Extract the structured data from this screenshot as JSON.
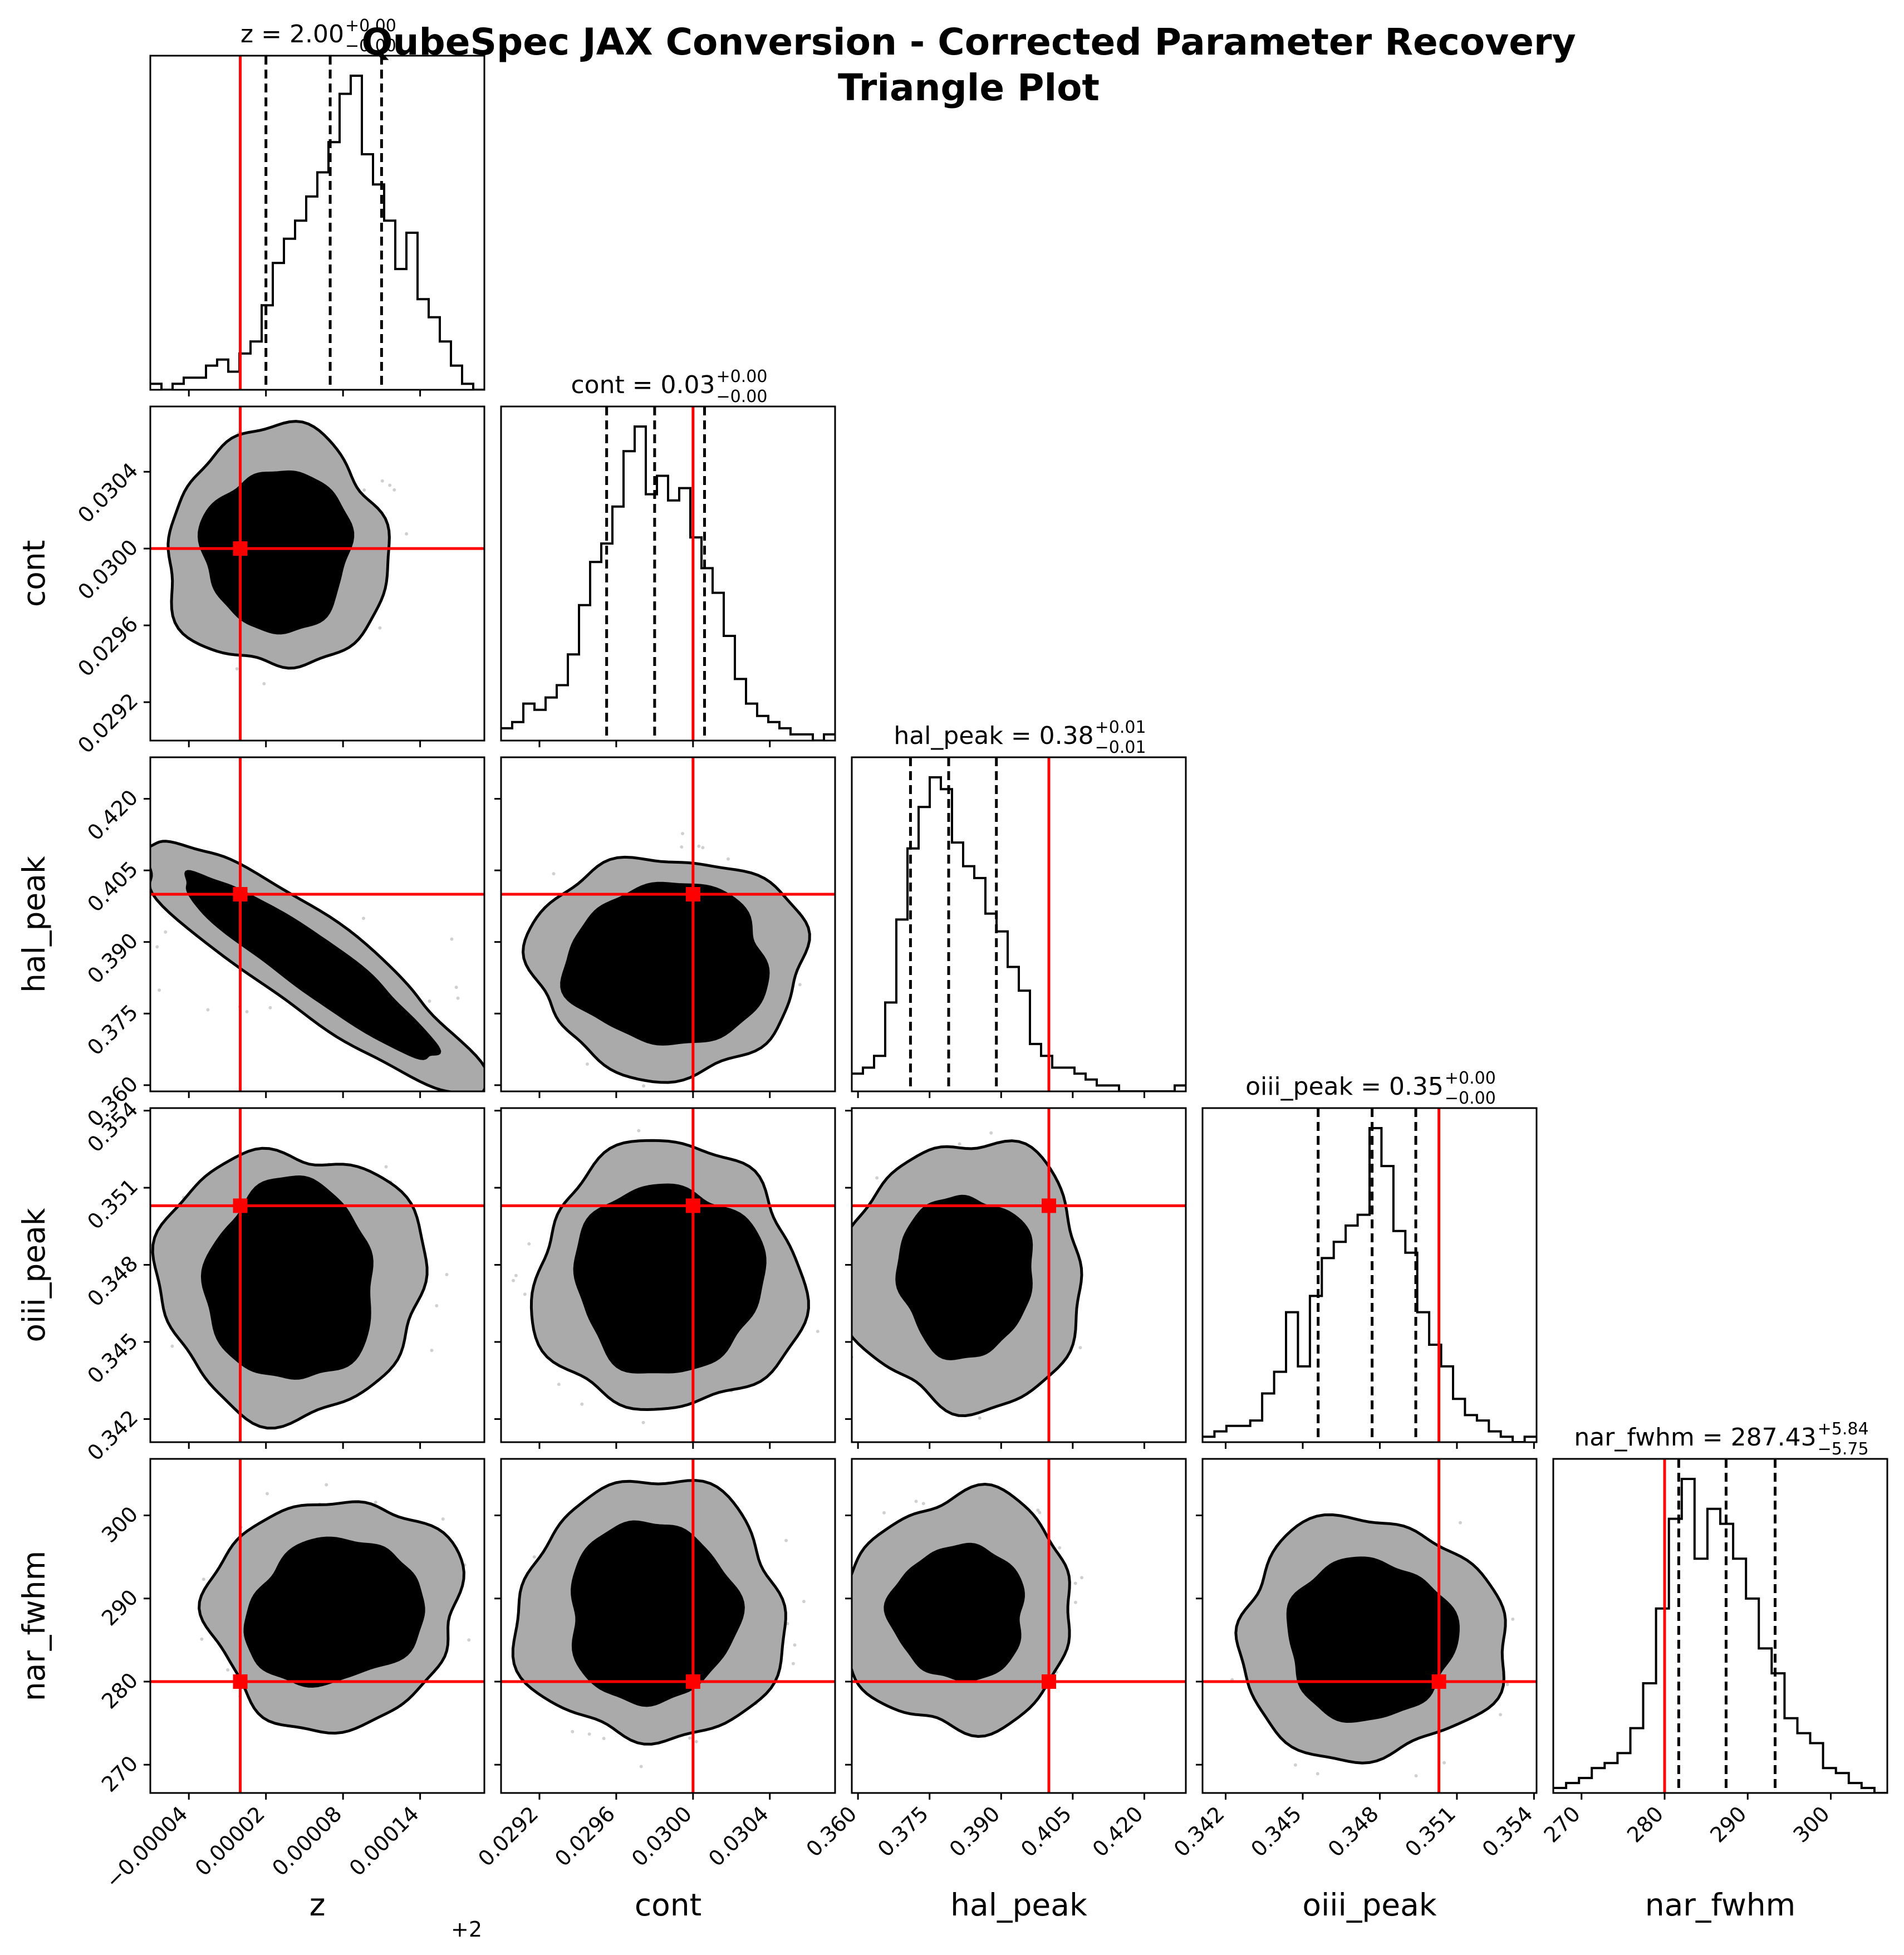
{
  "figure": {
    "title_line1": "QubeSpec JAX Conversion - Corrected Parameter Recovery",
    "title_line2": "Triangle Plot",
    "background": "#ffffff",
    "truth_color": "#ff0000",
    "contour_outer_color": "#aaaaaa",
    "contour_inner_color": "#000000"
  },
  "chart_data": {
    "type": "corner",
    "parameters": [
      {
        "key": "z",
        "label": "z",
        "range": [
          1.99993,
          2.00019
        ],
        "ticks": [
          -4e-05,
          2e-05,
          8e-05,
          0.00014
        ],
        "tick_labels": [
          "−0.00004",
          "0.00002",
          "0.00008",
          "0.00014"
        ],
        "offset_label": "+2",
        "title_main": "z = 2.00",
        "title_sup": "+0.00",
        "title_sub": "−0.00",
        "truth": 2.0,
        "quantiles": [
          2.00002,
          2.00007,
          2.00011
        ],
        "hist_heights": [
          1,
          0,
          1,
          2,
          2,
          4,
          5,
          3,
          6,
          8,
          14,
          21,
          25,
          28,
          32,
          36,
          41,
          49,
          52,
          39,
          34,
          28,
          20,
          26,
          15,
          12,
          8,
          4,
          1,
          0
        ]
      },
      {
        "key": "cont",
        "label": "cont",
        "range": [
          0.029,
          0.03074
        ],
        "ticks": [
          0.0292,
          0.0296,
          0.03,
          0.0304
        ],
        "tick_labels": [
          "0.0292",
          "0.0296",
          "0.0300",
          "0.0304"
        ],
        "title_main": "cont = 0.03",
        "title_sup": "+0.00",
        "title_sub": "−0.00",
        "truth": 0.03,
        "quantiles": [
          0.02955,
          0.0298,
          0.03006
        ],
        "hist_heights": [
          2,
          3,
          6,
          5,
          7,
          9,
          14,
          22,
          29,
          32,
          38,
          47,
          51,
          40,
          43,
          39,
          41,
          33,
          28,
          24,
          17,
          10,
          6,
          4,
          3,
          2,
          1,
          1,
          0,
          1
        ]
      },
      {
        "key": "hal_peak",
        "label": "hal_peak",
        "range": [
          0.3587,
          0.4287
        ],
        "ticks": [
          0.36,
          0.375,
          0.39,
          0.405,
          0.42
        ],
        "tick_labels": [
          "0.360",
          "0.375",
          "0.390",
          "0.405",
          "0.420"
        ],
        "title_main": "hal_peak = 0.38",
        "title_sup": "+0.01",
        "title_sub": "−0.01",
        "truth": 0.4,
        "quantiles": [
          0.371,
          0.379,
          0.389
        ],
        "hist_heights": [
          3,
          4,
          6,
          15,
          29,
          41,
          48,
          53,
          51,
          42,
          38,
          36,
          30,
          27,
          21,
          17,
          8,
          6,
          4,
          4,
          3,
          2,
          1,
          1,
          0,
          0,
          0,
          0,
          0,
          1
        ]
      },
      {
        "key": "oiii_peak",
        "label": "oiii_peak",
        "range": [
          0.3411,
          0.3541
        ],
        "ticks": [
          0.342,
          0.345,
          0.348,
          0.351,
          0.354
        ],
        "tick_labels": [
          "0.342",
          "0.345",
          "0.348",
          "0.351",
          "0.354"
        ],
        "title_main": "oiii_peak = 0.35",
        "title_sup": "+0.00",
        "title_sub": "−0.00",
        "truth": 0.3503,
        "quantiles": [
          0.3456,
          0.3477,
          0.3494
        ],
        "hist_heights": [
          1,
          2,
          3,
          3,
          4,
          9,
          13,
          24,
          14,
          27,
          34,
          37,
          40,
          42,
          58,
          51,
          39,
          35,
          24,
          18,
          14,
          8,
          5,
          4,
          2,
          1,
          0,
          1
        ]
      },
      {
        "key": "nar_fwhm",
        "label": "nar_fwhm",
        "range": [
          266.6,
          306.8
        ],
        "ticks": [
          270,
          280,
          290,
          300
        ],
        "tick_labels": [
          "270",
          "280",
          "290",
          "300"
        ],
        "title_main": "nar_fwhm = 287.43",
        "title_sup": "+5.84",
        "title_sub": "−5.75",
        "truth": 280.0,
        "quantiles": [
          281.7,
          287.4,
          293.3
        ],
        "hist_heights": [
          1,
          2,
          3,
          5,
          6,
          8,
          13,
          22,
          37,
          55,
          63,
          47,
          57,
          54,
          47,
          39,
          29,
          24,
          15,
          12,
          10,
          5,
          4,
          2,
          1,
          0
        ]
      }
    ],
    "contours": {
      "levels": [
        "1-sigma (inner, filled black)",
        "2-sigma (outer, filled grey)"
      ]
    }
  }
}
